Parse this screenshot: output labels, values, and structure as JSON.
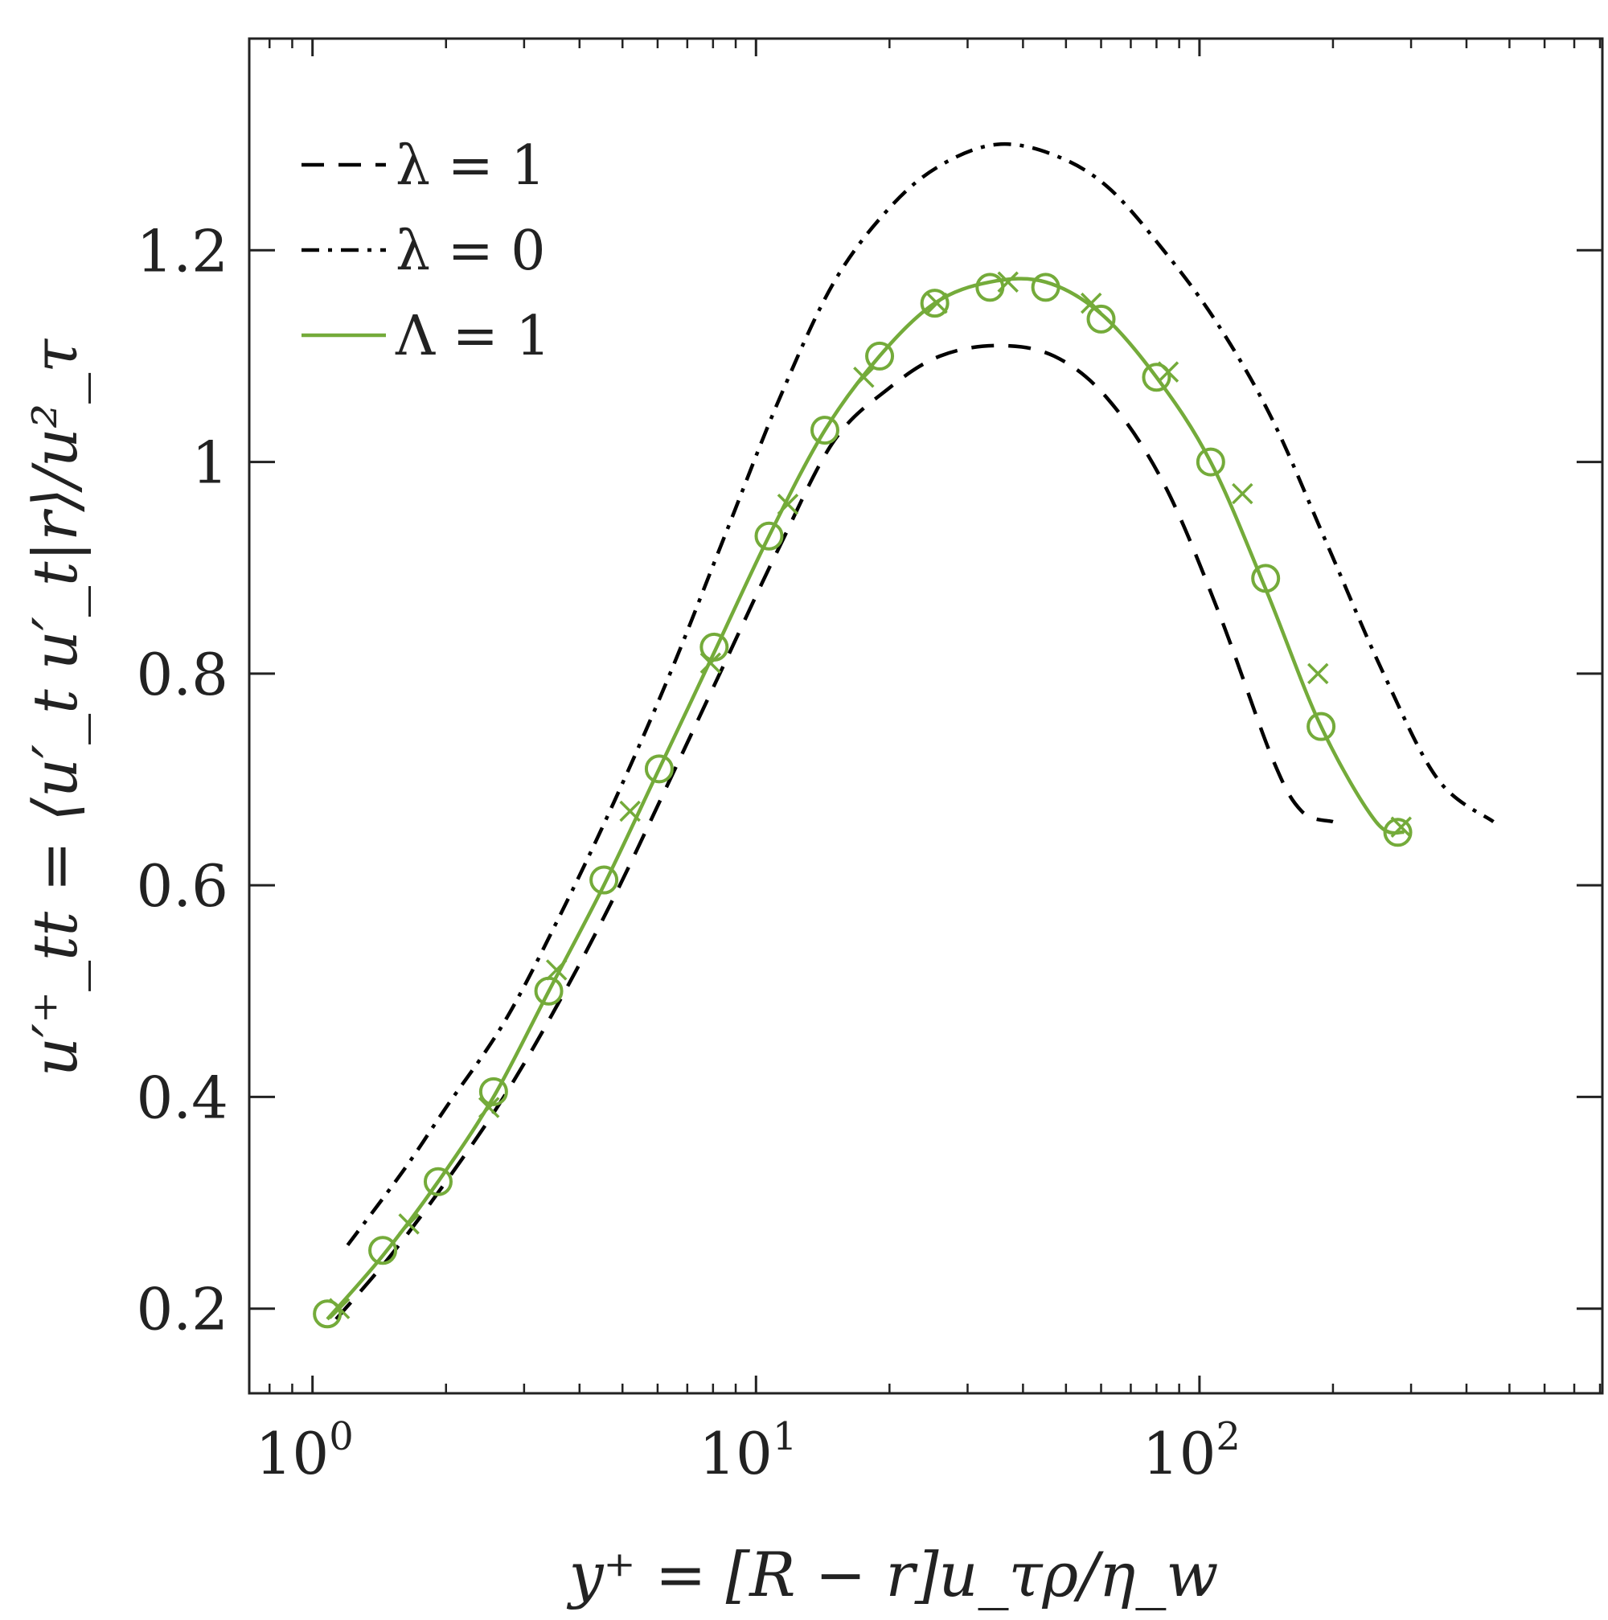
{
  "chart_data": {
    "type": "line",
    "title": "",
    "xlabel": "y⁺ = [R − r]u_τρ/η_w",
    "ylabel": "u′⁺_tt = ⟨u′_t u′_t|r⟩/u²_τ",
    "xscale": "log",
    "xlim": [
      0.72,
      810
    ],
    "ylim": [
      0.12,
      1.4
    ],
    "x_ticks": [
      {
        "value": 1,
        "base": "10",
        "exp": "0"
      },
      {
        "value": 10,
        "base": "10",
        "exp": "1"
      },
      {
        "value": 100,
        "base": "10",
        "exp": "2"
      }
    ],
    "y_ticks": [
      {
        "value": 0.2,
        "label": "0.2"
      },
      {
        "value": 0.4,
        "label": "0.4"
      },
      {
        "value": 0.6,
        "label": "0.6"
      },
      {
        "value": 0.8,
        "label": "0.8"
      },
      {
        "value": 1.0,
        "label": "1"
      },
      {
        "value": 1.2,
        "label": "1.2"
      }
    ],
    "grid": false,
    "legend_position": "top-left",
    "series": [
      {
        "name": "λ = 1",
        "style": "dashed",
        "color": "#000000",
        "x": [
          1.13,
          1.5,
          2.0,
          2.7,
          3.6,
          4.8,
          6.4,
          8.5,
          11.3,
          15,
          20,
          26,
          35,
          47,
          62,
          83,
          110,
          146,
          170,
          200
        ],
        "y": [
          0.19,
          0.25,
          0.32,
          0.4,
          0.49,
          0.59,
          0.7,
          0.81,
          0.92,
          1.02,
          1.07,
          1.1,
          1.11,
          1.1,
          1.06,
          0.98,
          0.86,
          0.72,
          0.67,
          0.66
        ]
      },
      {
        "name": "λ = 0",
        "style": "dashdot",
        "color": "#000000",
        "x": [
          1.2,
          1.6,
          2.0,
          2.7,
          3.6,
          4.8,
          6.4,
          8.5,
          11.3,
          15,
          20,
          26,
          35,
          47,
          62,
          83,
          110,
          146,
          195,
          260,
          345,
          460
        ],
        "y": [
          0.26,
          0.33,
          0.39,
          0.47,
          0.57,
          0.68,
          0.8,
          0.93,
          1.06,
          1.17,
          1.24,
          1.28,
          1.3,
          1.29,
          1.26,
          1.2,
          1.13,
          1.04,
          0.92,
          0.8,
          0.7,
          0.66
        ]
      },
      {
        "name": "Λ = 1",
        "style": "solid",
        "color": "#74ab3a",
        "x": [
          1.08,
          1.44,
          1.92,
          2.56,
          3.41,
          4.54,
          6.05,
          8.05,
          10.7,
          14.3,
          19,
          25.3,
          33.7,
          45,
          60,
          80,
          106,
          141,
          188,
          250,
          290
        ],
        "y": [
          0.19,
          0.25,
          0.32,
          0.4,
          0.5,
          0.6,
          0.71,
          0.82,
          0.93,
          1.03,
          1.1,
          1.15,
          1.17,
          1.17,
          1.14,
          1.08,
          1.0,
          0.88,
          0.75,
          0.66,
          0.65
        ]
      },
      {
        "name": "Λ = 1 circle markers",
        "marker": "circle",
        "color": "#74ab3a",
        "x": [
          1.08,
          1.44,
          1.92,
          2.56,
          3.41,
          4.54,
          6.05,
          8.05,
          10.7,
          14.3,
          19,
          25.3,
          33.7,
          45,
          60,
          80,
          106,
          141,
          188,
          280
        ],
        "y": [
          0.195,
          0.255,
          0.32,
          0.405,
          0.5,
          0.605,
          0.71,
          0.825,
          0.93,
          1.03,
          1.1,
          1.15,
          1.165,
          1.165,
          1.135,
          1.08,
          1.0,
          0.89,
          0.75,
          0.65
        ]
      },
      {
        "name": "Λ = 1 cross markers",
        "marker": "x",
        "color": "#74ab3a",
        "x": [
          1.15,
          1.65,
          2.5,
          3.55,
          5.2,
          7.9,
          11.8,
          17.5,
          25.6,
          37,
          57,
          85,
          125,
          185,
          285
        ],
        "y": [
          0.2,
          0.28,
          0.39,
          0.52,
          0.67,
          0.81,
          0.96,
          1.08,
          1.15,
          1.17,
          1.15,
          1.085,
          0.97,
          0.8,
          0.655
        ]
      }
    ]
  }
}
